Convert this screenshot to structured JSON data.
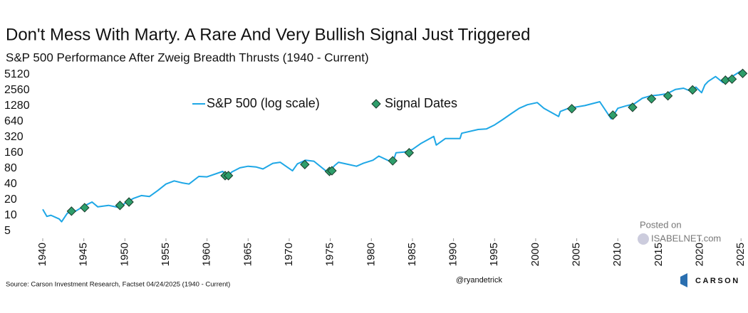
{
  "chart_data": {
    "type": "line",
    "title": "Don't Mess With Marty. A Rare And Very Bullish Signal Just Triggered",
    "subtitle": "S&P 500 Performance After Zweig Breadth Thrusts (1940 - Current)",
    "log_scale": true,
    "legend": "top",
    "xlim": [
      1940,
      2025.5
    ],
    "xticks": [
      1940,
      1945,
      1950,
      1955,
      1960,
      1965,
      1970,
      1975,
      1980,
      1985,
      1990,
      1995,
      2000,
      2005,
      2010,
      2015,
      2020,
      2025
    ],
    "ylim": [
      3.6,
      7000
    ],
    "yticks": [
      5,
      10,
      20,
      40,
      80,
      160,
      320,
      640,
      1280,
      2560,
      5120
    ],
    "series": [
      {
        "name": "S&P 500 (log scale)",
        "color": "#1ea7e6",
        "x": [
          1940,
          1940.5,
          1941,
          1942,
          1942.3,
          1943,
          1944,
          1945,
          1946,
          1946.7,
          1948,
          1949.4,
          1950,
          1951,
          1952,
          1953,
          1954,
          1955,
          1956,
          1957,
          1957.8,
          1959,
          1960,
          1961.9,
          1962.5,
          1963,
          1964,
          1965,
          1966,
          1966.8,
          1968,
          1968.9,
          1970.4,
          1971,
          1972,
          1973,
          1974.8,
          1975.5,
          1976,
          1977,
          1978.2,
          1979,
          1980.2,
          1980.9,
          1982.6,
          1983,
          1984,
          1985,
          1986,
          1987.6,
          1987.9,
          1989,
          1990.8,
          1991,
          1993,
          1994,
          1995,
          1996,
          1997,
          1998,
          1999,
          2000.2,
          2001,
          2002.8,
          2003,
          2004,
          2006,
          2007.8,
          2009.2,
          2010,
          2011,
          2012,
          2013,
          2014,
          2015,
          2016,
          2017,
          2018,
          2018.9,
          2019.5,
          2020.2,
          2020.6,
          2021,
          2021.9,
          2022.8,
          2023.5,
          2024,
          2024.9,
          2025.1,
          2025.3
        ],
        "values": [
          13,
          9.5,
          10,
          8.5,
          7.5,
          11,
          12,
          15,
          18,
          14.5,
          15.5,
          14,
          17,
          21,
          24,
          23,
          30,
          40,
          46,
          42,
          40,
          56,
          55,
          70,
          56,
          68,
          82,
          88,
          85,
          78,
          100,
          105,
          72,
          98,
          115,
          110,
          65,
          90,
          105,
          97,
          88,
          100,
          115,
          138,
          103,
          160,
          165,
          185,
          240,
          330,
          225,
          300,
          300,
          380,
          450,
          460,
          550,
          700,
          900,
          1150,
          1350,
          1480,
          1150,
          800,
          1000,
          1150,
          1300,
          1540,
          720,
          1150,
          1280,
          1400,
          1800,
          2000,
          2080,
          2200,
          2650,
          2800,
          2450,
          2950,
          2300,
          3250,
          3800,
          4700,
          3600,
          4400,
          4800,
          5900,
          6100,
          5300
        ]
      },
      {
        "name": "Signal Dates",
        "color": "#2e9e6b",
        "marker": "diamond",
        "x": [
          1943.5,
          1945.1,
          1949.4,
          1950.5,
          1962.2,
          1962.6,
          1971.9,
          1974.9,
          1975.2,
          1982.6,
          1984.6,
          2004.4,
          2009.4,
          2011.8,
          2014.1,
          2016.1,
          2019.1,
          2023.1,
          2023.9,
          2025.2
        ],
        "values": [
          12,
          14,
          15.5,
          18,
          58,
          58,
          95,
          70,
          72,
          112,
          160,
          1130,
          850,
          1200,
          1750,
          2000,
          2600,
          4000,
          4200,
          5400
        ]
      }
    ],
    "source": "Source: Carson Investment Research, Factset 04/24/2025 (1940 - Current)",
    "credit": "@ryandetrick",
    "watermark": [
      "Posted on",
      "ISABELNET.com"
    ],
    "logo": "CARSON"
  }
}
